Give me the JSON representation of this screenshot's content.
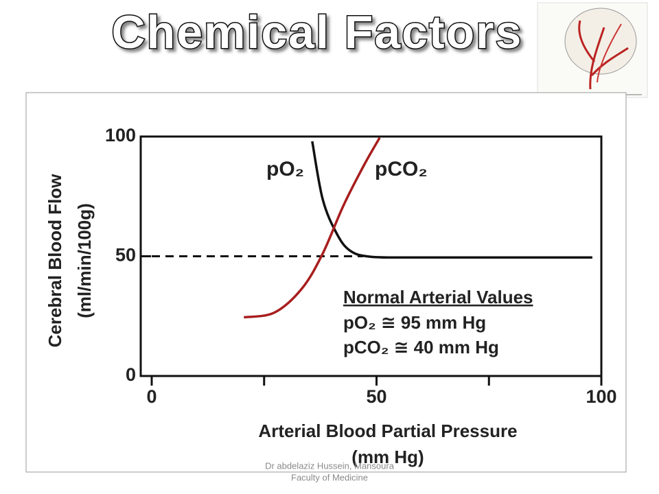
{
  "chart_data": {
    "type": "line",
    "title": "Chemical Factors",
    "x_label": [
      "Arterial Blood Partial Pressure",
      "(mm Hg)"
    ],
    "y_label": [
      "Cerebral Blood Flow",
      "(ml/min/100g)"
    ],
    "xlim": [
      0,
      100
    ],
    "ylim": [
      0,
      100
    ],
    "xticks": [
      0,
      50,
      100
    ],
    "x_minor_ticks": [
      25,
      75
    ],
    "yticks": [
      0,
      50,
      100
    ],
    "series": [
      {
        "name": "pO₂",
        "color": "#111111",
        "x": [
          35.7,
          38,
          41,
          44,
          48.7,
          60,
          80,
          98
        ],
        "values": [
          98,
          74,
          60,
          52.5,
          49.8,
          49.5,
          49.5,
          49.5
        ]
      },
      {
        "name": "pCO₂",
        "color": "#a81e1e",
        "x": [
          20.5,
          27.3,
          33.4,
          38,
          42.6,
          47.2,
          50.7
        ],
        "values": [
          24.5,
          26.5,
          36.5,
          51,
          71,
          88,
          99.5
        ]
      }
    ],
    "reference_line": {
      "y": 50,
      "x": [
        0,
        47
      ],
      "style": "dashed"
    },
    "annotations": [
      "Normal Arterial Values",
      "pO₂    ≅ 95 mm Hg",
      "pCO₂ ≅ 40 mm Hg"
    ]
  },
  "footer": [
    "Dr abdelaziz Hussein, Mansoura",
    "Faculty of Medicine"
  ]
}
